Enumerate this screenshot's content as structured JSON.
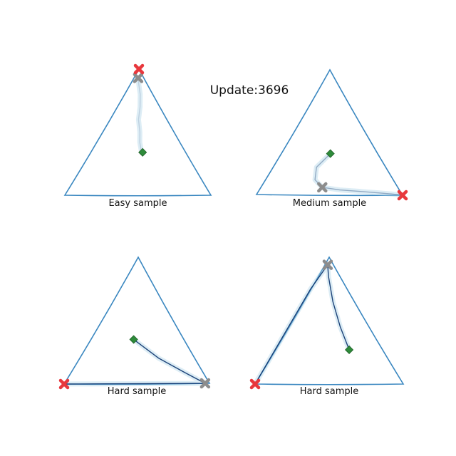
{
  "title": "Update:3696",
  "colors": {
    "triangle": "#3a87c0",
    "trajectory": "#08306b",
    "trajectory_light": "#9ecae1",
    "target_marker": "#e8383d",
    "start_marker": "#8c8c8c",
    "center_marker": "#2e8b3a"
  },
  "panels": [
    {
      "label": "Easy sample",
      "target": [
        1.0,
        0.0,
        0.0
      ],
      "start": [
        0.93,
        0.03,
        0.04
      ],
      "center": [
        0.34,
        0.36,
        0.3
      ],
      "trajectory": [
        [
          0.93,
          0.03,
          0.04
        ],
        [
          0.88,
          0.06,
          0.06
        ],
        [
          0.8,
          0.11,
          0.09
        ],
        [
          0.7,
          0.16,
          0.14
        ],
        [
          0.6,
          0.2,
          0.2
        ],
        [
          0.5,
          0.26,
          0.24
        ],
        [
          0.42,
          0.3,
          0.28
        ],
        [
          0.36,
          0.34,
          0.3
        ]
      ],
      "trajectory_strength": 0.15
    },
    {
      "label": "Medium sample",
      "target": [
        0.0,
        1.0,
        0.0
      ],
      "start": [
        0.06,
        0.42,
        0.52
      ],
      "center": [
        0.33,
        0.34,
        0.33
      ],
      "trajectory": [
        [
          0.33,
          0.34,
          0.33
        ],
        [
          0.22,
          0.3,
          0.48
        ],
        [
          0.12,
          0.34,
          0.54
        ],
        [
          0.06,
          0.42,
          0.52
        ],
        [
          0.04,
          0.55,
          0.41
        ],
        [
          0.03,
          0.68,
          0.29
        ],
        [
          0.02,
          0.8,
          0.18
        ],
        [
          0.01,
          0.92,
          0.07
        ],
        [
          0.0,
          1.0,
          0.0
        ]
      ],
      "trajectory_strength": 0.35
    },
    {
      "label": "Hard sample",
      "target": [
        0.0,
        0.0,
        1.0
      ],
      "start": [
        0.0,
        0.97,
        0.03
      ],
      "center": [
        0.35,
        0.3,
        0.35
      ],
      "trajectory": [
        [
          0.35,
          0.3,
          0.35
        ],
        [
          0.2,
          0.55,
          0.25
        ],
        [
          0.08,
          0.8,
          0.12
        ],
        [
          0.0,
          0.97,
          0.03
        ],
        [
          0.0,
          0.8,
          0.2
        ],
        [
          0.0,
          0.55,
          0.45
        ],
        [
          0.0,
          0.3,
          0.7
        ],
        [
          0.0,
          0.1,
          0.9
        ],
        [
          0.0,
          0.0,
          1.0
        ]
      ],
      "trajectory_strength": 0.9
    },
    {
      "label": "Hard sample",
      "target": [
        0.0,
        0.0,
        1.0
      ],
      "start": [
        0.94,
        0.02,
        0.04
      ],
      "center": [
        0.27,
        0.5,
        0.23
      ],
      "trajectory": [
        [
          0.27,
          0.5,
          0.23
        ],
        [
          0.45,
          0.35,
          0.2
        ],
        [
          0.65,
          0.2,
          0.15
        ],
        [
          0.85,
          0.07,
          0.08
        ],
        [
          0.94,
          0.02,
          0.04
        ],
        [
          0.75,
          0.0,
          0.25
        ],
        [
          0.5,
          0.0,
          0.5
        ],
        [
          0.25,
          0.0,
          0.75
        ],
        [
          0.0,
          0.0,
          1.0
        ]
      ],
      "trajectory_strength": 0.9
    }
  ]
}
